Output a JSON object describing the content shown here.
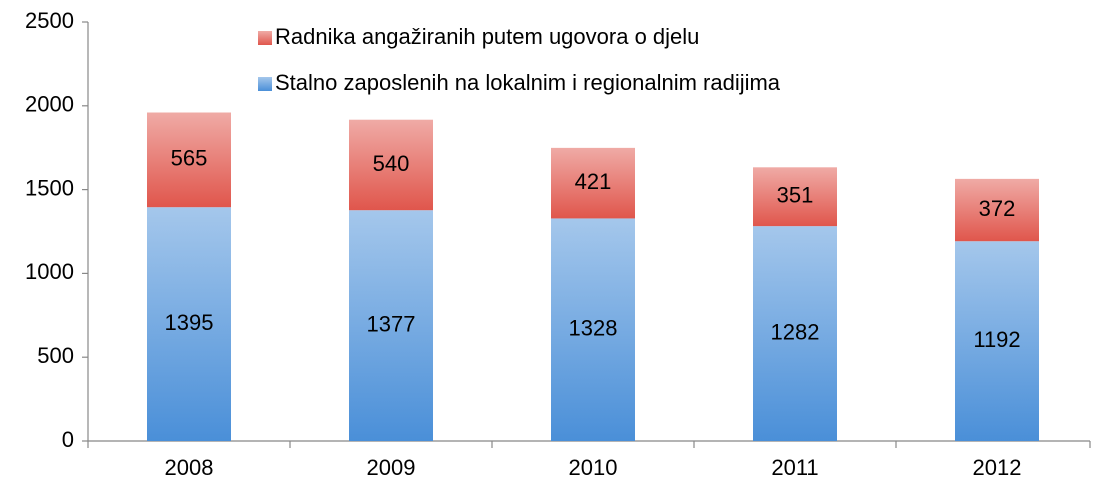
{
  "chart_data": {
    "type": "stacked_bar",
    "categories": [
      "2008",
      "2009",
      "2010",
      "2011",
      "2012"
    ],
    "series": [
      {
        "name": "Stalno zaposlenih na lokalnim i regionalnim radijima",
        "color": "#4a8fd8",
        "values": [
          1395,
          1377,
          1328,
          1282,
          1192
        ]
      },
      {
        "name": "Radnika angažiranih putem ugovora o djelu",
        "color": "#e0564c",
        "values": [
          565,
          540,
          421,
          351,
          372
        ]
      }
    ],
    "ylim": [
      0,
      2500
    ],
    "yticks": [
      0,
      500,
      1000,
      1500,
      2000,
      2500
    ],
    "grid": false
  }
}
